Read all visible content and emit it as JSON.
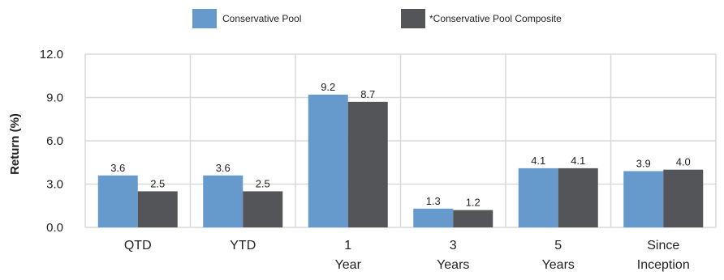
{
  "chart_data": {
    "type": "bar",
    "categories": [
      [
        "QTD"
      ],
      [
        "YTD"
      ],
      [
        "1",
        "Year"
      ],
      [
        "3",
        "Years"
      ],
      [
        "5",
        "Years"
      ],
      [
        "Since",
        "Inception"
      ]
    ],
    "series": [
      {
        "name": "Conservative Pool",
        "color": "#6699cc",
        "values": [
          3.6,
          3.6,
          9.2,
          1.3,
          4.1,
          3.9
        ],
        "labels": [
          "3.6",
          "3.6",
          "9.2",
          "1.3",
          "4.1",
          "3.9"
        ]
      },
      {
        "name": "*Conservative Pool Composite",
        "color": "#545559",
        "values": [
          2.5,
          2.5,
          8.7,
          1.2,
          4.1,
          4.0
        ],
        "labels": [
          "2.5",
          "2.5",
          "8.7",
          "1.2",
          "4.1",
          "4.0"
        ]
      }
    ],
    "ylabel": "Return (%)",
    "ylim": [
      0,
      12
    ],
    "yticks": [
      "0.0",
      "3.0",
      "6.0",
      "9.0",
      "12.0"
    ],
    "grid": true,
    "legend_position": "top-center"
  }
}
